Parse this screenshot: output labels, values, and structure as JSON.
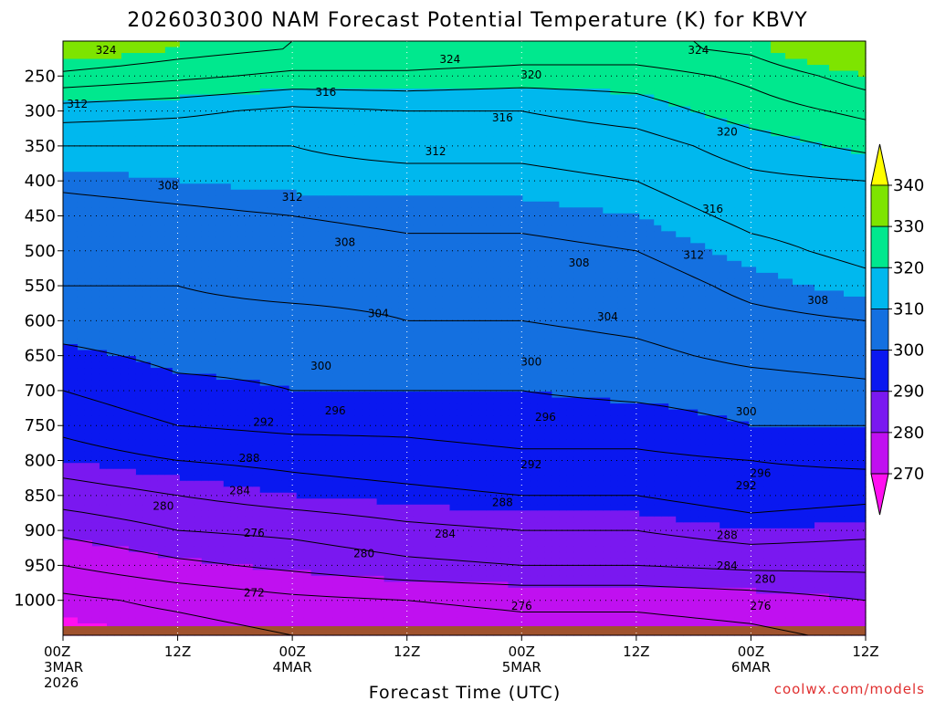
{
  "chart_data": {
    "type": "contour",
    "title": "2026030300 NAM Forecast Potential Temperature (K) for KBVY",
    "xlabel": "Forecast Time (UTC)",
    "ylabel": "",
    "credit": "coolwx.com/models",
    "x_range_hours": [
      0,
      84
    ],
    "y_range_hpa": [
      200,
      1050
    ],
    "y_ticks": [
      250,
      300,
      350,
      400,
      450,
      500,
      550,
      600,
      650,
      700,
      750,
      800,
      850,
      900,
      950,
      1000
    ],
    "x_ticks": [
      {
        "hour": 0,
        "lines": [
          "00Z",
          "3MAR",
          "2026"
        ]
      },
      {
        "hour": 12,
        "lines": [
          "12Z"
        ]
      },
      {
        "hour": 24,
        "lines": [
          "00Z",
          "4MAR"
        ]
      },
      {
        "hour": 36,
        "lines": [
          "12Z"
        ]
      },
      {
        "hour": 48,
        "lines": [
          "00Z",
          "5MAR"
        ]
      },
      {
        "hour": 60,
        "lines": [
          "12Z"
        ]
      },
      {
        "hour": 72,
        "lines": [
          "00Z",
          "6MAR"
        ]
      },
      {
        "hour": 84,
        "lines": [
          "12Z"
        ]
      }
    ],
    "colorbar": {
      "labels": [
        "340",
        "330",
        "320",
        "310",
        "300",
        "290",
        "280",
        "270"
      ],
      "bins": [
        {
          "min": 330,
          "max": 340,
          "color": "#7ee400"
        },
        {
          "min": 320,
          "max": 330,
          "color": "#00e88e"
        },
        {
          "min": 310,
          "max": 320,
          "color": "#00b8ee"
        },
        {
          "min": 300,
          "max": 310,
          "color": "#1470e0"
        },
        {
          "min": 290,
          "max": 300,
          "color": "#0a18f0"
        },
        {
          "min": 280,
          "max": 290,
          "color": "#7a18f0"
        },
        {
          "min": 270,
          "max": 280,
          "color": "#c010f0"
        }
      ],
      "over_color": "#ffff00",
      "under_color": "#ff10f0"
    },
    "profile_hours": [
      0,
      12,
      24,
      36,
      48,
      60,
      72,
      84
    ],
    "profiles": [
      {
        "p": 210,
        "values": [
          333,
          330,
          328,
          328,
          327,
          327,
          329,
          336
        ]
      },
      {
        "p": 250,
        "values": [
          327,
          325,
          323,
          323,
          322,
          322,
          325,
          330
        ]
      },
      {
        "p": 300,
        "values": [
          318,
          317,
          315,
          316,
          316,
          318,
          322,
          325
        ]
      },
      {
        "p": 350,
        "values": [
          312,
          312,
          312,
          313,
          313,
          314,
          318,
          321
        ]
      },
      {
        "p": 400,
        "values": [
          309,
          310,
          311,
          311,
          311,
          312,
          315,
          316
        ]
      },
      {
        "p": 450,
        "values": [
          306,
          307,
          308,
          309,
          309,
          310,
          313,
          314
        ]
      },
      {
        "p": 500,
        "values": [
          305,
          306,
          306,
          307,
          307,
          308,
          311,
          313
        ]
      },
      {
        "p": 550,
        "values": [
          304,
          304,
          305,
          305,
          305,
          306,
          309,
          311
        ]
      },
      {
        "p": 600,
        "values": [
          302,
          303,
          303,
          304,
          304,
          305,
          307,
          308
        ]
      },
      {
        "p": 650,
        "values": [
          299,
          301,
          301,
          302,
          302,
          303,
          305,
          306
        ]
      },
      {
        "p": 700,
        "values": [
          296,
          299,
          300,
          300,
          300,
          301,
          302,
          303
        ]
      },
      {
        "p": 750,
        "values": [
          293,
          296,
          297,
          297,
          298,
          298,
          300,
          300
        ]
      },
      {
        "p": 800,
        "values": [
          290,
          292,
          293,
          294,
          295,
          295,
          296,
          297
        ]
      },
      {
        "p": 850,
        "values": [
          286,
          288,
          290,
          291,
          292,
          292,
          294,
          293
        ]
      },
      {
        "p": 900,
        "values": [
          281,
          284,
          285,
          287,
          288,
          288,
          290,
          289
        ]
      },
      {
        "p": 950,
        "values": [
          276,
          279,
          281,
          283,
          284,
          284,
          285,
          285
        ]
      },
      {
        "p": 1000,
        "values": [
          271,
          273,
          275,
          276,
          277,
          277,
          278,
          280
        ]
      },
      {
        "p": 1050,
        "values": [
          269,
          270,
          272,
          273,
          274,
          274,
          275,
          277
        ]
      }
    ],
    "contour_levels": [
      272,
      276,
      280,
      284,
      288,
      292,
      296,
      300,
      304,
      308,
      312,
      316,
      320,
      324,
      328
    ],
    "contour_labels": [
      {
        "text": "324",
        "hour": 4.5,
        "p": 213
      },
      {
        "text": "324",
        "hour": 40.5,
        "p": 226
      },
      {
        "text": "324",
        "hour": 66.5,
        "p": 213
      },
      {
        "text": "320",
        "hour": 49,
        "p": 248
      },
      {
        "text": "316",
        "hour": 27.5,
        "p": 273
      },
      {
        "text": "312",
        "hour": 1.5,
        "p": 290
      },
      {
        "text": "316",
        "hour": 46,
        "p": 310
      },
      {
        "text": "320",
        "hour": 69.5,
        "p": 330
      },
      {
        "text": "312",
        "hour": 39,
        "p": 358
      },
      {
        "text": "308",
        "hour": 11,
        "p": 407
      },
      {
        "text": "312",
        "hour": 24,
        "p": 423
      },
      {
        "text": "316",
        "hour": 68,
        "p": 440
      },
      {
        "text": "308",
        "hour": 29.5,
        "p": 488
      },
      {
        "text": "312",
        "hour": 66,
        "p": 506
      },
      {
        "text": "308",
        "hour": 54,
        "p": 517
      },
      {
        "text": "304",
        "hour": 33,
        "p": 590
      },
      {
        "text": "304",
        "hour": 57,
        "p": 594
      },
      {
        "text": "308",
        "hour": 79,
        "p": 571
      },
      {
        "text": "300",
        "hour": 27,
        "p": 665
      },
      {
        "text": "300",
        "hour": 49,
        "p": 659
      },
      {
        "text": "296",
        "hour": 28.5,
        "p": 729
      },
      {
        "text": "300",
        "hour": 71.5,
        "p": 730
      },
      {
        "text": "296",
        "hour": 50.5,
        "p": 738
      },
      {
        "text": "292",
        "hour": 21,
        "p": 745
      },
      {
        "text": "292",
        "hour": 49,
        "p": 806
      },
      {
        "text": "296",
        "hour": 73,
        "p": 818
      },
      {
        "text": "292",
        "hour": 71.5,
        "p": 836
      },
      {
        "text": "288",
        "hour": 19.5,
        "p": 797
      },
      {
        "text": "284",
        "hour": 18.5,
        "p": 843
      },
      {
        "text": "288",
        "hour": 46,
        "p": 860
      },
      {
        "text": "280",
        "hour": 10.5,
        "p": 865
      },
      {
        "text": "284",
        "hour": 40,
        "p": 905
      },
      {
        "text": "288",
        "hour": 69.5,
        "p": 907
      },
      {
        "text": "276",
        "hour": 20,
        "p": 904
      },
      {
        "text": "280",
        "hour": 31.5,
        "p": 933
      },
      {
        "text": "284",
        "hour": 69.5,
        "p": 951
      },
      {
        "text": "280",
        "hour": 73.5,
        "p": 970
      },
      {
        "text": "272",
        "hour": 20,
        "p": 989
      },
      {
        "text": "276",
        "hour": 48,
        "p": 1008
      },
      {
        "text": "276",
        "hour": 73,
        "p": 1008
      }
    ],
    "ground": {
      "p_top": 1037,
      "color": "#a0522d"
    }
  }
}
